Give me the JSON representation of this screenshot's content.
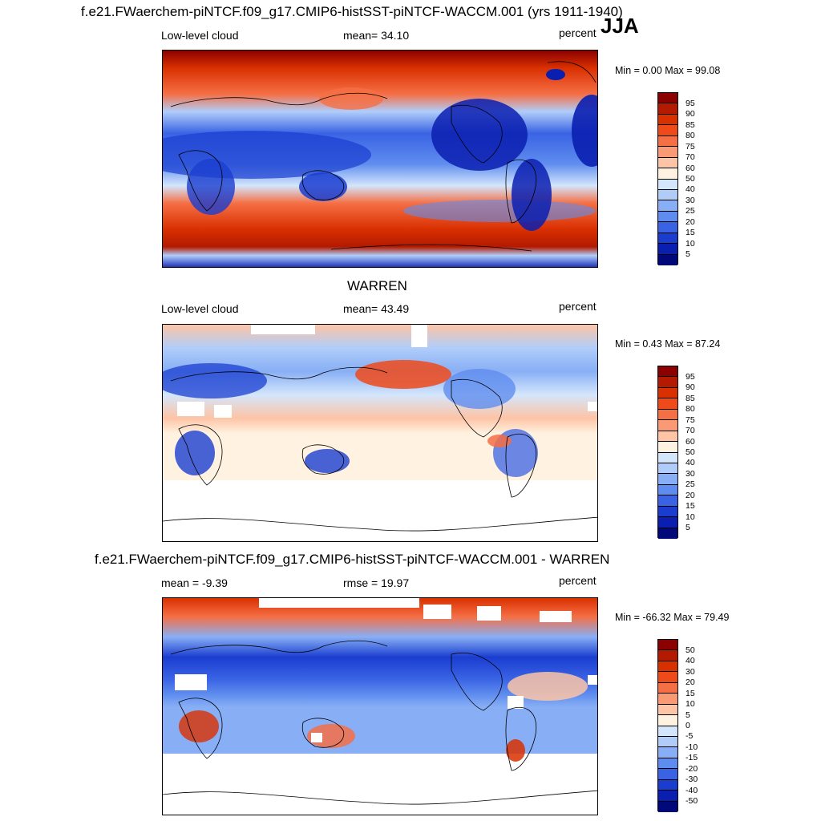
{
  "main_title": "f.e21.FWaerchem-piNTCF.f09_g17.CMIP6-histSST-piNTCF-WACCM.001 (yrs 1911-1940)",
  "season": "JJA",
  "panels": [
    {
      "left_label": "Low-level cloud",
      "center_label": "mean=  34.10",
      "units": "percent",
      "minmax": "Min =   0.00 Max =  99.08"
    },
    {
      "title": "WARREN",
      "left_label": "Low-level cloud",
      "center_label": "mean=  43.49",
      "units": "percent",
      "minmax": "Min =   0.43 Max =  87.24"
    },
    {
      "title": "f.e21.FWaerchem-piNTCF.f09_g17.CMIP6-histSST-piNTCF-WACCM.001 - WARREN",
      "left_label": "mean =  -9.39",
      "center_label": "rmse =  19.97",
      "units": "percent",
      "minmax": "Min = -66.32 Max =  79.49"
    }
  ],
  "colorbar_abs": {
    "labels": [
      "95",
      "90",
      "85",
      "80",
      "75",
      "70",
      "60",
      "50",
      "40",
      "30",
      "25",
      "20",
      "15",
      "10",
      "5"
    ],
    "colors": [
      "#8b0000",
      "#b31a00",
      "#d93000",
      "#ee4a1a",
      "#f56f45",
      "#fa9a75",
      "#fdc4a6",
      "#fff2e0",
      "#d4e6fc",
      "#b0cdfa",
      "#88aff5",
      "#5f8def",
      "#3a63e4",
      "#1a3dd0",
      "#0a1fb0",
      "#00087a"
    ]
  },
  "colorbar_diff": {
    "labels": [
      "50",
      "40",
      "30",
      "20",
      "15",
      "10",
      "5",
      "0",
      "-5",
      "-10",
      "-15",
      "-20",
      "-30",
      "-40",
      "-50"
    ],
    "colors": [
      "#8b0000",
      "#b31a00",
      "#d93000",
      "#ee4a1a",
      "#f56f45",
      "#fa9a75",
      "#fdc4a6",
      "#fff2e0",
      "#d4e6fc",
      "#b0cdfa",
      "#88aff5",
      "#5f8def",
      "#3a63e4",
      "#1a3dd0",
      "#0a1fb0",
      "#00087a"
    ]
  }
}
